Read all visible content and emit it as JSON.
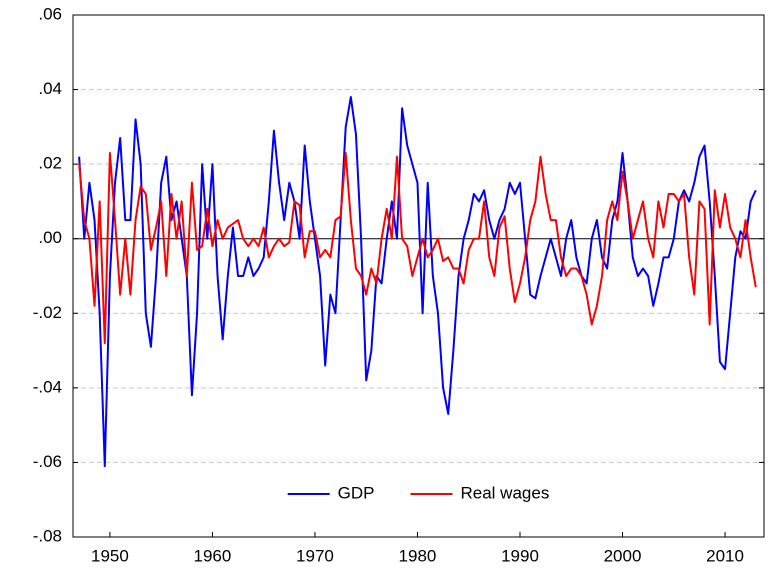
{
  "chart_data": {
    "type": "line",
    "x": [
      1947,
      1947.5,
      1948,
      1948.5,
      1949,
      1949.5,
      1950,
      1950.5,
      1951,
      1951.5,
      1952,
      1952.5,
      1953,
      1953.5,
      1954,
      1954.5,
      1955,
      1955.5,
      1956,
      1956.5,
      1957,
      1957.5,
      1958,
      1958.5,
      1959,
      1959.5,
      1960,
      1960.5,
      1961,
      1961.5,
      1962,
      1962.5,
      1963,
      1963.5,
      1964,
      1964.5,
      1965,
      1965.5,
      1966,
      1966.5,
      1967,
      1967.5,
      1968,
      1968.5,
      1969,
      1969.5,
      1970,
      1970.5,
      1971,
      1971.5,
      1972,
      1972.5,
      1973,
      1973.5,
      1974,
      1974.5,
      1975,
      1975.5,
      1976,
      1976.5,
      1977,
      1977.5,
      1978,
      1978.5,
      1979,
      1979.5,
      1980,
      1980.5,
      1981,
      1981.5,
      1982,
      1982.5,
      1983,
      1983.5,
      1984,
      1984.5,
      1985,
      1985.5,
      1986,
      1986.5,
      1987,
      1987.5,
      1988,
      1988.5,
      1989,
      1989.5,
      1990,
      1990.5,
      1991,
      1991.5,
      1992,
      1992.5,
      1993,
      1993.5,
      1994,
      1994.5,
      1995,
      1995.5,
      1996,
      1996.5,
      1997,
      1997.5,
      1998,
      1998.5,
      1999,
      1999.5,
      2000,
      2000.5,
      2001,
      2001.5,
      2002,
      2002.5,
      2003,
      2003.5,
      2004,
      2004.5,
      2005,
      2005.5,
      2006,
      2006.5,
      2007,
      2007.5,
      2008,
      2008.5,
      2009,
      2009.5,
      2010,
      2010.5,
      2011,
      2011.5,
      2012,
      2012.5,
      2013
    ],
    "series": [
      {
        "name": "GDP",
        "color": "#0000ff",
        "values": [
          0.022,
          0.0,
          0.015,
          0.005,
          -0.02,
          -0.061,
          -0.01,
          0.015,
          0.027,
          0.005,
          0.005,
          0.032,
          0.02,
          -0.02,
          -0.029,
          -0.01,
          0.015,
          0.022,
          0.005,
          0.01,
          0.0,
          -0.01,
          -0.042,
          -0.02,
          0.02,
          0.0,
          0.02,
          -0.01,
          -0.027,
          -0.01,
          0.003,
          -0.01,
          -0.01,
          -0.005,
          -0.01,
          -0.008,
          -0.005,
          0.01,
          0.029,
          0.015,
          0.005,
          0.015,
          0.01,
          0.0,
          0.025,
          0.01,
          0.0,
          -0.01,
          -0.034,
          -0.015,
          -0.02,
          0.005,
          0.03,
          0.038,
          0.028,
          0.0,
          -0.038,
          -0.03,
          -0.01,
          -0.012,
          0.0,
          0.01,
          0.0,
          0.035,
          0.025,
          0.02,
          0.015,
          -0.02,
          0.015,
          -0.01,
          -0.02,
          -0.04,
          -0.047,
          -0.03,
          -0.01,
          0.0,
          0.005,
          0.012,
          0.01,
          0.013,
          0.005,
          0.0,
          0.005,
          0.008,
          0.015,
          0.012,
          0.015,
          0.0,
          -0.015,
          -0.016,
          -0.01,
          -0.005,
          0.0,
          -0.005,
          -0.01,
          0.0,
          0.005,
          -0.005,
          -0.01,
          -0.012,
          0.0,
          0.005,
          -0.005,
          -0.008,
          0.005,
          0.01,
          0.023,
          0.01,
          -0.005,
          -0.01,
          -0.008,
          -0.01,
          -0.018,
          -0.012,
          -0.005,
          -0.005,
          0.0,
          0.01,
          0.013,
          0.01,
          0.015,
          0.022,
          0.025,
          0.01,
          -0.01,
          -0.033,
          -0.035,
          -0.02,
          -0.005,
          0.002,
          0.0,
          0.01,
          0.013
        ]
      },
      {
        "name": "Real wages",
        "color": "#ff0000",
        "values": [
          0.02,
          0.005,
          0.0,
          -0.018,
          0.01,
          -0.028,
          0.023,
          0.005,
          -0.015,
          0.0,
          -0.015,
          0.005,
          0.014,
          0.012,
          -0.003,
          0.003,
          0.01,
          -0.01,
          0.012,
          0.0,
          0.01,
          -0.01,
          0.015,
          -0.003,
          -0.002,
          0.008,
          -0.002,
          0.005,
          0.0,
          0.003,
          0.004,
          0.005,
          0.0,
          -0.002,
          0.0,
          -0.002,
          0.003,
          -0.005,
          -0.002,
          0.0,
          -0.002,
          -0.001,
          0.01,
          0.009,
          -0.005,
          0.002,
          0.002,
          -0.005,
          -0.003,
          -0.005,
          0.005,
          0.006,
          0.023,
          0.005,
          -0.008,
          -0.01,
          -0.015,
          -0.008,
          -0.012,
          0.0,
          0.008,
          0.0,
          0.022,
          0.0,
          -0.002,
          -0.01,
          -0.005,
          0.0,
          -0.005,
          -0.003,
          0.0,
          -0.006,
          -0.005,
          -0.008,
          -0.008,
          -0.012,
          -0.003,
          0.0,
          0.0,
          0.01,
          -0.005,
          -0.01,
          0.003,
          0.006,
          -0.008,
          -0.017,
          -0.012,
          -0.005,
          0.005,
          0.01,
          0.022,
          0.012,
          0.005,
          0.005,
          -0.005,
          -0.01,
          -0.008,
          -0.008,
          -0.01,
          -0.015,
          -0.023,
          -0.018,
          -0.01,
          0.005,
          0.01,
          0.005,
          0.018,
          0.01,
          0.0,
          0.005,
          0.01,
          0.0,
          -0.005,
          0.01,
          0.003,
          0.012,
          0.012,
          0.01,
          0.012,
          -0.005,
          -0.015,
          0.01,
          0.008,
          -0.023,
          0.013,
          0.003,
          0.012,
          0.003,
          0.0,
          -0.005,
          0.005,
          -0.005,
          -0.013
        ]
      }
    ],
    "xlim": [
      1946.4,
      2013.8
    ],
    "xticks": [
      1950,
      1960,
      1970,
      1980,
      1990,
      2000,
      2010
    ],
    "ylim": [
      -0.08,
      0.06
    ],
    "yticks": [
      {
        "value": -0.08,
        "label": "-.08"
      },
      {
        "value": -0.06,
        "label": "-.06"
      },
      {
        "value": -0.04,
        "label": "-.04"
      },
      {
        "value": -0.02,
        "label": "-.02"
      },
      {
        "value": 0,
        "label": ".00"
      },
      {
        "value": 0.02,
        "label": ".02"
      },
      {
        "value": 0.04,
        "label": ".04"
      },
      {
        "value": 0.06,
        "label": ".06"
      }
    ],
    "grid": true,
    "legend": "bottom"
  }
}
